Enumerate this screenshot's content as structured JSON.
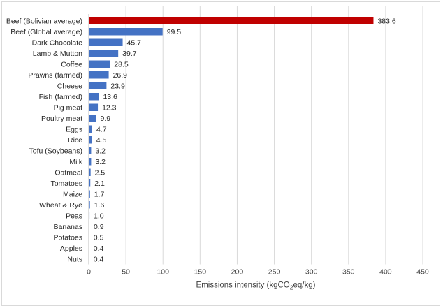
{
  "chart_data": {
    "type": "bar",
    "orientation": "horizontal",
    "categories": [
      "Beef (Bolivian average)",
      "Beef (Global average)",
      "Dark Chocolate",
      "Lamb & Mutton",
      "Coffee",
      "Prawns (farmed)",
      "Cheese",
      "Fish (farmed)",
      "Pig meat",
      "Poultry meat",
      "Eggs",
      "Rice",
      "Tofu (Soybeans)",
      "Milk",
      "Oatmeal",
      "Tomatoes",
      "Maize",
      "Wheat & Rye",
      "Peas",
      "Bananas",
      "Potatoes",
      "Apples",
      "Nuts"
    ],
    "values": [
      383.6,
      99.5,
      45.7,
      39.7,
      28.5,
      26.9,
      23.9,
      13.6,
      12.3,
      9.9,
      4.7,
      4.5,
      3.2,
      3.2,
      2.5,
      2.1,
      1.7,
      1.6,
      1.0,
      0.9,
      0.5,
      0.4,
      0.4
    ],
    "value_labels": [
      "383.6",
      "99.5",
      "45.7",
      "39.7",
      "28.5",
      "26.9",
      "23.9",
      "13.6",
      "12.3",
      "9.9",
      "4.7",
      "4.5",
      "3.2",
      "3.2",
      "2.5",
      "2.1",
      "1.7",
      "1.6",
      "1.0",
      "0.9",
      "0.5",
      "0.4",
      "0.4"
    ],
    "xlabel_main": "Emissions intensity (kgCO",
    "xlabel_sub": "2",
    "xlabel_tail": "eq/kg)",
    "ylabel": "",
    "xlim": [
      0,
      450
    ],
    "xticks": [
      0,
      50,
      100,
      150,
      200,
      250,
      300,
      350,
      400,
      450
    ],
    "grid": "vertical",
    "colors": {
      "default": "#4472c4",
      "highlight": "#c00000",
      "grid": "#d9d9d9"
    },
    "highlight_index": 0
  }
}
